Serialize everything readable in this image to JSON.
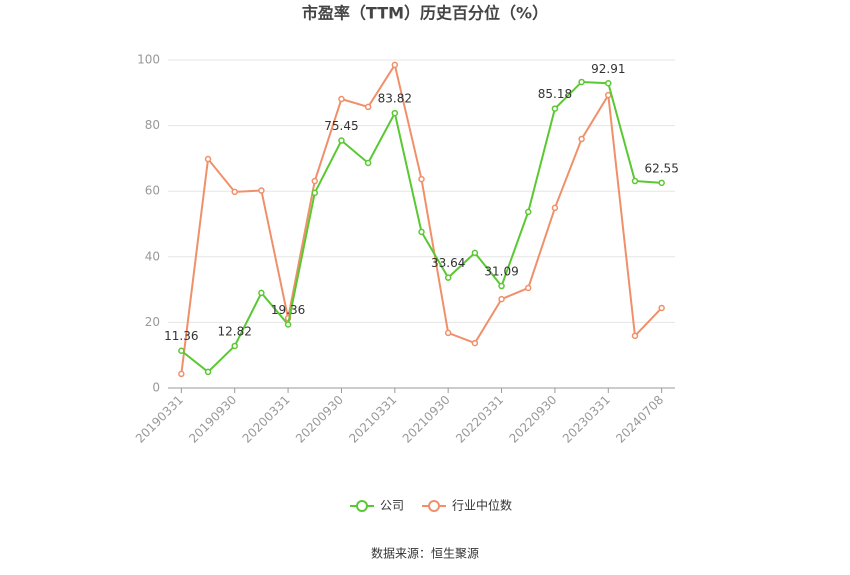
{
  "chart_data": {
    "type": "line",
    "title": "市盈率（TTM）历史百分位（%）",
    "categories": [
      "20190331",
      null,
      "20190930",
      null,
      "20200331",
      null,
      "20200930",
      null,
      "20210331",
      null,
      "20210930",
      null,
      "20220331",
      null,
      "20220930",
      null,
      "20230331",
      null,
      "20240708"
    ],
    "series": [
      {
        "name": "公司",
        "color": "#5ac832",
        "values": [
          11.36,
          4.9,
          12.82,
          29,
          19.36,
          59.5,
          75.45,
          68.6,
          83.82,
          47.6,
          33.64,
          41.2,
          31.09,
          53.7,
          85.18,
          93.3,
          92.91,
          63.1,
          62.55
        ],
        "value_labels": [
          "11.36",
          null,
          "12.82",
          null,
          "19.36",
          null,
          "75.45",
          null,
          "83.82",
          null,
          "33.64",
          null,
          "31.09",
          null,
          "85.18",
          null,
          "92.91",
          null,
          "62.55"
        ]
      },
      {
        "name": "行业中位数",
        "color": "#f0906a",
        "values": [
          4.3,
          69.8,
          59.8,
          60.2,
          21.3,
          63.1,
          88.1,
          85.7,
          98.5,
          63.7,
          16.8,
          13.7,
          27.1,
          30.5,
          54.9,
          75.9,
          89.3,
          15.9,
          24.4
        ]
      }
    ],
    "ylim": [
      0,
      100
    ],
    "yticks": [
      0,
      20,
      40,
      60,
      80,
      100
    ],
    "grid": true,
    "source": "数据来源：恒生聚源"
  }
}
